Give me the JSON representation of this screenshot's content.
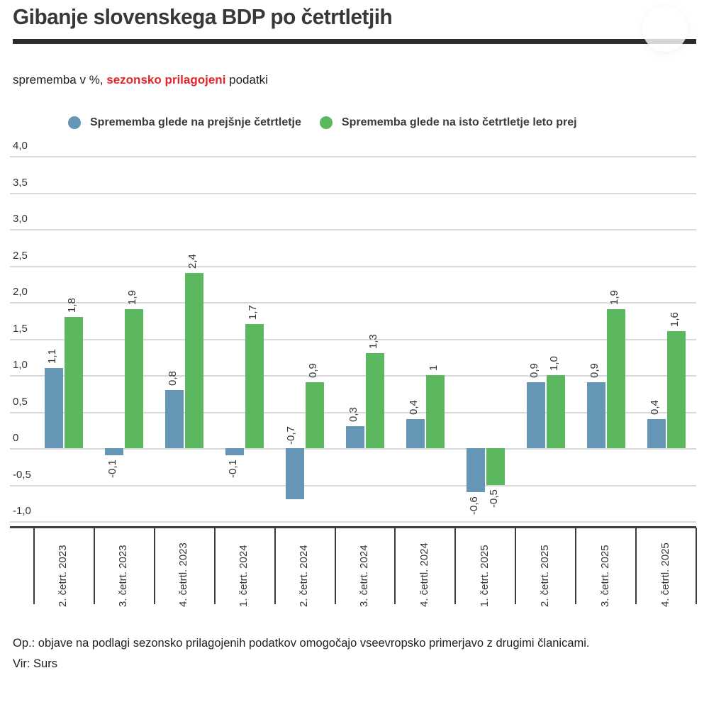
{
  "header": {
    "title": "Gibanje slovenskega BDP po četrtletjih"
  },
  "subtitle": {
    "prefix": "sprememba v %, ",
    "highlight": "sezonsko prilagojeni",
    "suffix": " podatki",
    "highlight_color": "#e5252b"
  },
  "chart_data": {
    "type": "bar",
    "title": "Gibanje slovenskega BDP po četrtletjih",
    "unit": "%",
    "grid": true,
    "legend_position": "top",
    "ylim": [
      -1.0,
      4.0
    ],
    "yticks": [
      {
        "label": "4,0",
        "value": 4.0
      },
      {
        "label": "3,5",
        "value": 3.5
      },
      {
        "label": "3,0",
        "value": 3.0
      },
      {
        "label": "2,5",
        "value": 2.5
      },
      {
        "label": "2,0",
        "value": 2.0
      },
      {
        "label": "1,5",
        "value": 1.5
      },
      {
        "label": "1,0",
        "value": 1.0
      },
      {
        "label": "0,5",
        "value": 0.5
      },
      {
        "label": "0",
        "value": 0
      },
      {
        "label": "-0,5",
        "value": -0.5
      },
      {
        "label": "-1,0",
        "value": -1.0
      }
    ],
    "categories": [
      "2. četrt. 2023",
      "3. četrt. 2023",
      "4. četrtl. 2023",
      "1. četrt. 2024",
      "2. četrt. 2024",
      "3. četrt. 2024",
      "4. četrtl. 2024",
      "1. četrt. 2025",
      "2. četrt. 2025",
      "3. četrt. 2025",
      "4. četrtl. 2025"
    ],
    "series": [
      {
        "name": "Sprememba glede na prejšnje četrtletje",
        "color": "#6596b6",
        "values": [
          1.1,
          -0.1,
          0.8,
          -0.1,
          -0.7,
          0.3,
          0.4,
          -0.6,
          0.9,
          0.9,
          0.4
        ],
        "labels": [
          "1,1",
          "-0,1",
          "0,8",
          "-0,1",
          "-0,7",
          "0,3",
          "0,4",
          "-0,6",
          "0,9",
          "0,9",
          "0,4"
        ]
      },
      {
        "name": "Sprememba glede na isto četrtletje leto prej",
        "color": "#5cb85f",
        "values": [
          1.8,
          1.9,
          2.4,
          1.7,
          0.9,
          1.3,
          1,
          -0.5,
          1.0,
          1.9,
          1.6
        ],
        "labels": [
          "1,8",
          "1,9",
          "2,4",
          "1,7",
          "0,9",
          "1,3",
          "1",
          "-0,5",
          "1,0",
          "1,9",
          "1,6"
        ]
      }
    ]
  },
  "footer": {
    "note": "Op.: objave na podlagi sezonsko prilagojenih podatkov omogočajo vseevropsko primerjavo z drugimi članicami.",
    "source": "Vir: Surs"
  }
}
